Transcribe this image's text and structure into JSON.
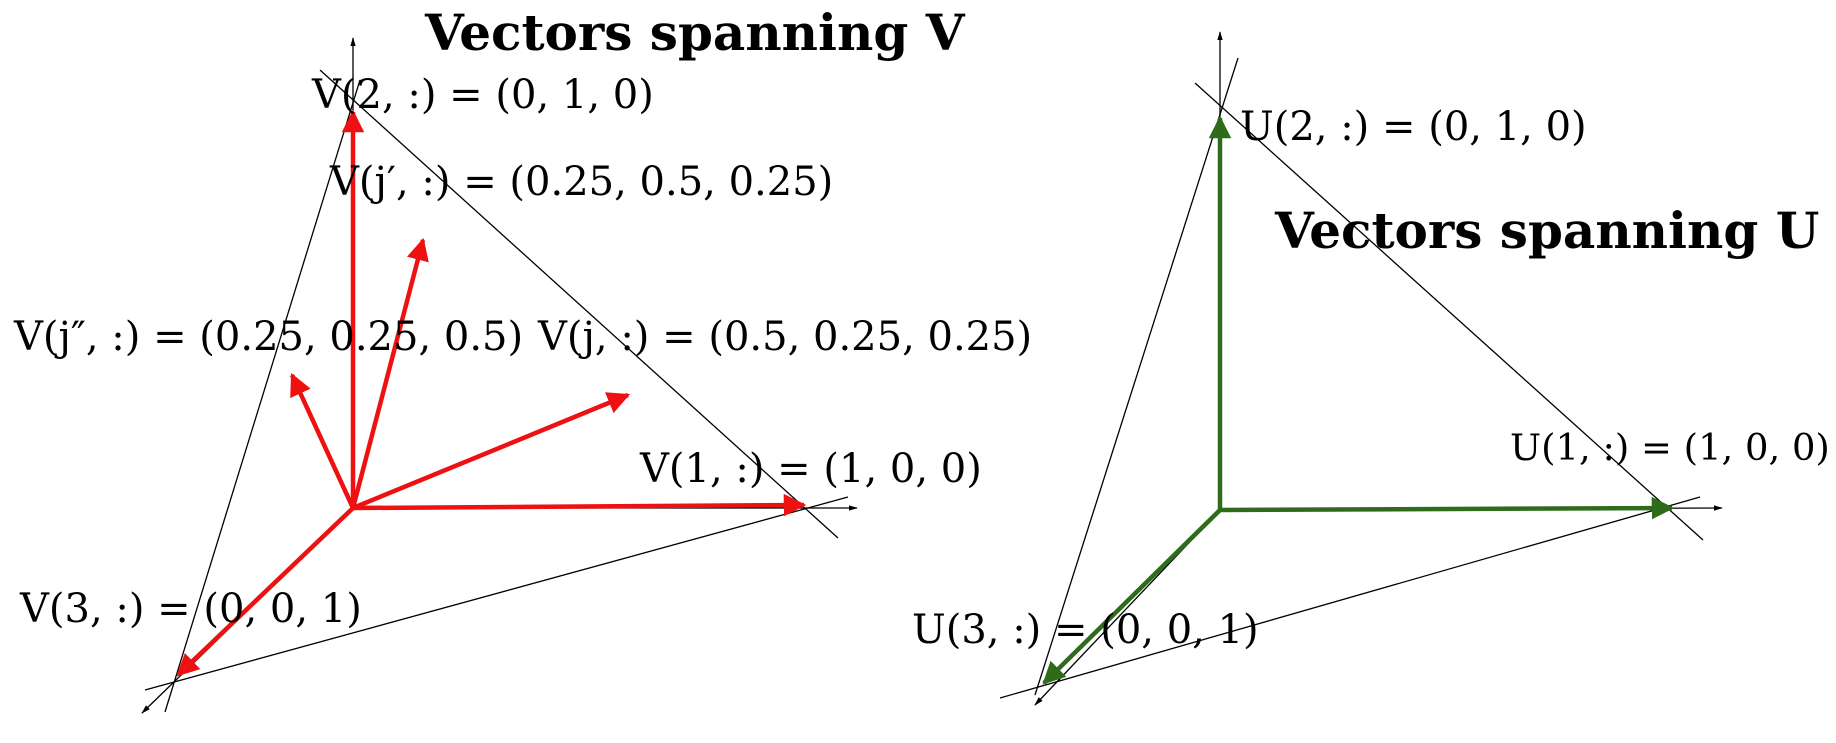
{
  "panels": {
    "left": {
      "title": "Vectors spanning V",
      "color": "#ee1111",
      "labels": {
        "v2": "V(2, :) = (0, 1, 0)",
        "vjprime": "V(j′, :) = (0.25, 0.5, 0.25)",
        "vjdouble": "V(j″, :) = (0.25, 0.25, 0.5)",
        "vj": "V(j, :) = (0.5, 0.25, 0.25)",
        "v1": "V(1, :) = (1, 0, 0)",
        "v3": "V(3, :) = (0, 0, 1)"
      }
    },
    "right": {
      "title": "Vectors spanning U",
      "color": "#2e6b1a",
      "labels": {
        "u2": "U(2, :) = (0, 1, 0)",
        "u1": "U(1, :) = (1, 0, 0)",
        "u3": "U(3, :) = (0, 0, 1)"
      }
    }
  }
}
